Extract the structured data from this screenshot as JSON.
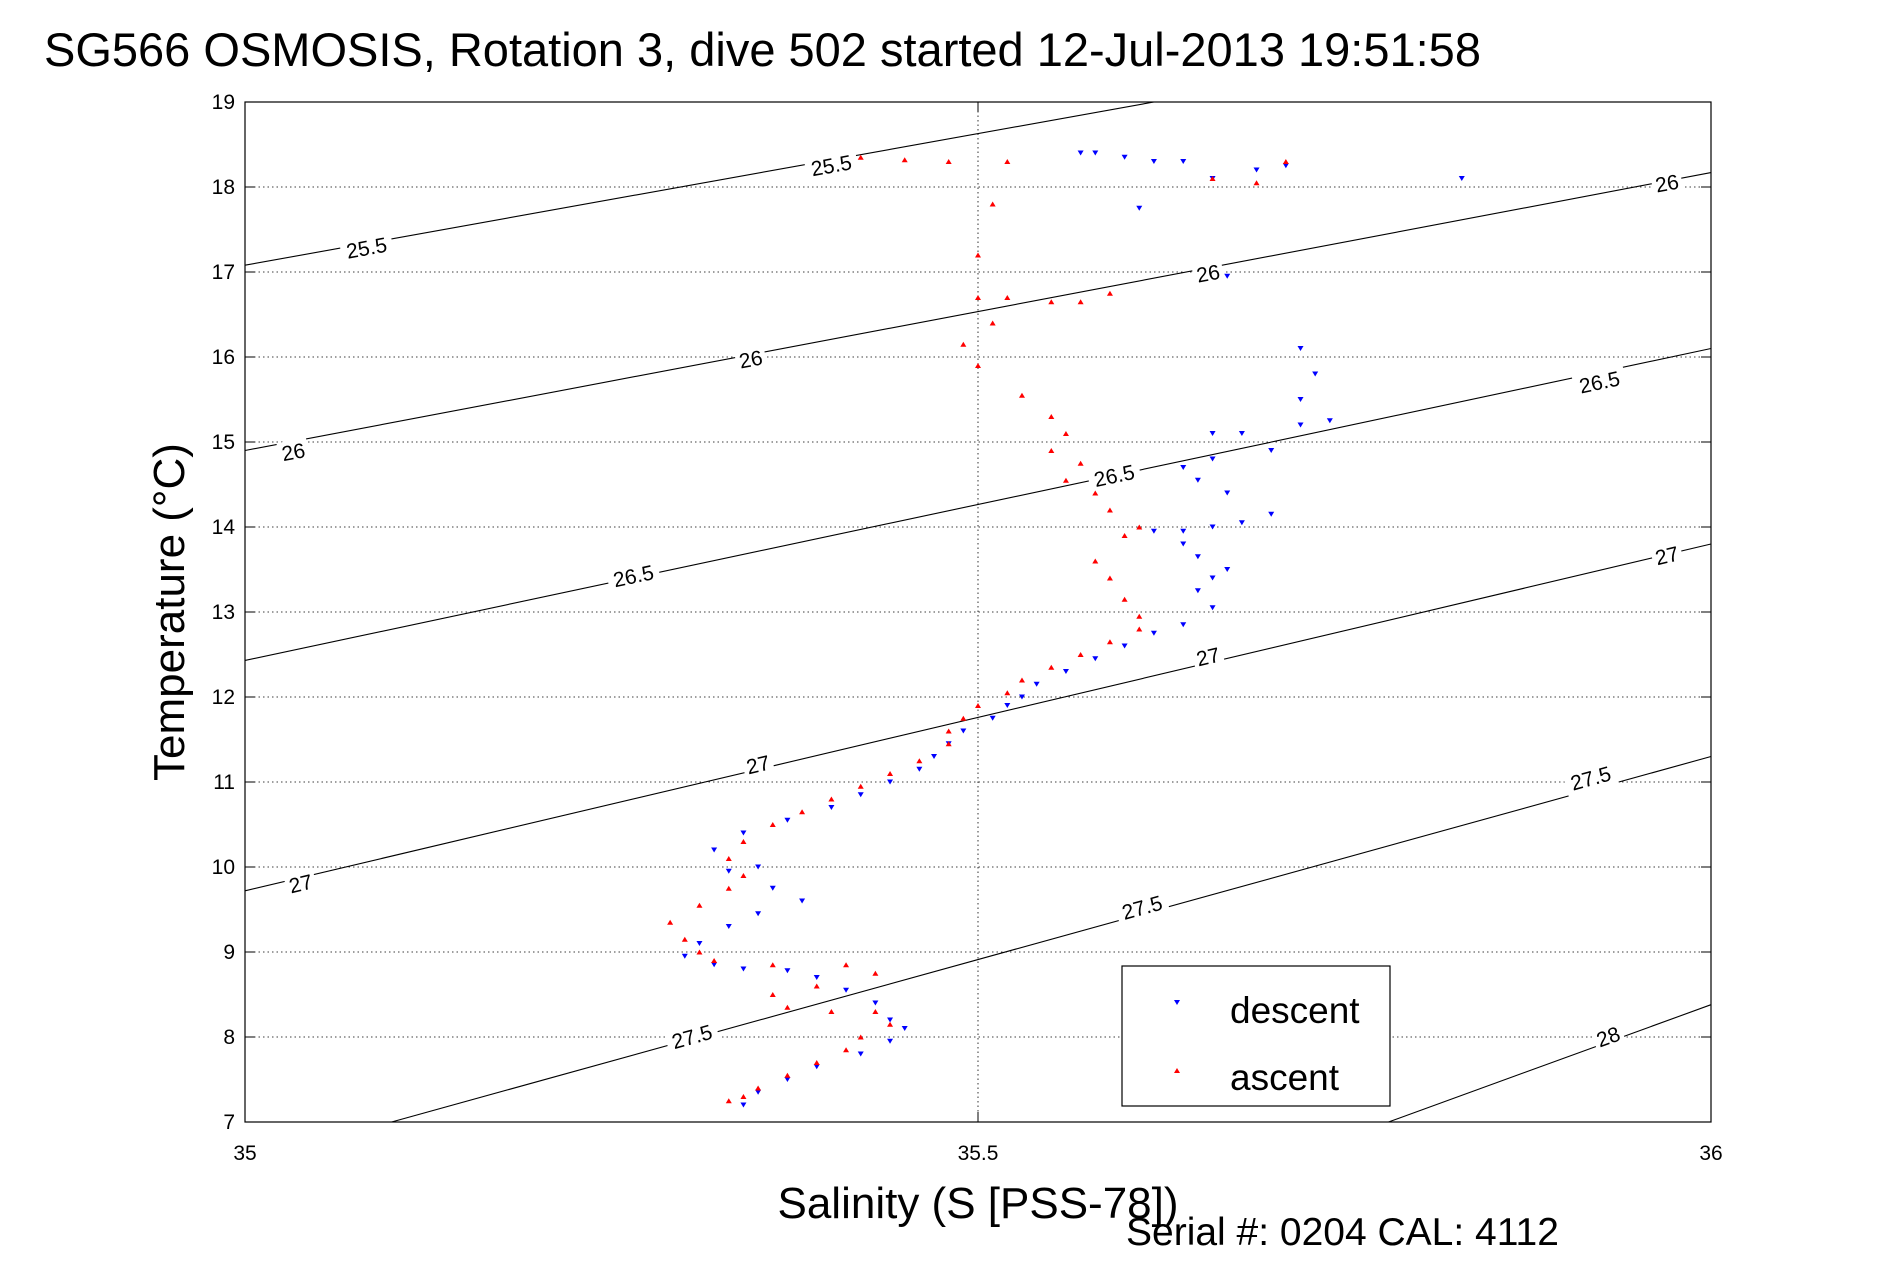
{
  "chart_data": {
    "type": "scatter",
    "title": "SG566 OSMOSIS, Rotation 3, dive 502 started 12-Jul-2013 19:51:58",
    "xlabel": "Salinity (S [PSS-78])",
    "ylabel": "Temperature (°C)",
    "footer": "Serial #: 0204  CAL: 4112",
    "xlim": [
      35,
      36
    ],
    "ylim": [
      7,
      19
    ],
    "xticks": [
      35,
      35.5,
      36
    ],
    "xtick_labels": [
      "35",
      "35.5",
      "36"
    ],
    "yticks": [
      7,
      8,
      9,
      10,
      11,
      12,
      13,
      14,
      15,
      16,
      17,
      18,
      19
    ],
    "ytick_labels": [
      "7",
      "8",
      "9",
      "10",
      "11",
      "12",
      "13",
      "14",
      "15",
      "16",
      "17",
      "18",
      "19"
    ],
    "grid": true,
    "legend_position": "bottom-right",
    "contours": [
      {
        "label": "25.5",
        "points": [
          [
            35.0,
            17.08
          ],
          [
            35.62,
            19.0
          ]
        ],
        "labels_at": [
          [
            35.083,
            17.28
          ],
          [
            35.4,
            18.25
          ]
        ]
      },
      {
        "label": "26",
        "points": [
          [
            35.0,
            14.9
          ],
          [
            36.0,
            18.17
          ]
        ],
        "labels_at": [
          [
            35.033,
            14.88
          ],
          [
            35.345,
            15.97
          ],
          [
            35.657,
            16.98
          ],
          [
            35.97,
            18.04
          ]
        ]
      },
      {
        "label": "26.5",
        "points": [
          [
            35.0,
            12.43
          ],
          [
            36.0,
            16.1
          ]
        ],
        "labels_at": [
          [
            35.265,
            13.42
          ],
          [
            35.593,
            14.6
          ],
          [
            35.924,
            15.7
          ]
        ]
      },
      {
        "label": "27",
        "points": [
          [
            35.0,
            9.72
          ],
          [
            36.0,
            13.8
          ]
        ],
        "labels_at": [
          [
            35.038,
            9.8
          ],
          [
            35.35,
            11.2
          ],
          [
            35.657,
            12.47
          ],
          [
            35.97,
            13.66
          ]
        ]
      },
      {
        "label": "27.5",
        "points": [
          [
            35.1,
            7.0
          ],
          [
            36.0,
            11.3
          ]
        ],
        "labels_at": [
          [
            35.305,
            8.0
          ],
          [
            35.612,
            9.52
          ],
          [
            35.918,
            11.04
          ]
        ]
      },
      {
        "label": "28",
        "points": [
          [
            35.78,
            7.0
          ],
          [
            36.0,
            8.38
          ]
        ],
        "labels_at": [
          [
            35.93,
            8.0
          ]
        ]
      }
    ],
    "series": [
      {
        "name": "descent",
        "color": "#0000ff",
        "marker": "triangle-down",
        "points": [
          [
            35.57,
            18.4
          ],
          [
            35.58,
            18.4
          ],
          [
            35.6,
            18.35
          ],
          [
            35.62,
            18.3
          ],
          [
            35.64,
            18.3
          ],
          [
            35.66,
            18.1
          ],
          [
            35.69,
            18.2
          ],
          [
            35.71,
            18.25
          ],
          [
            35.83,
            18.1
          ],
          [
            35.61,
            17.75
          ],
          [
            35.67,
            16.95
          ],
          [
            35.72,
            16.1
          ],
          [
            35.73,
            15.8
          ],
          [
            35.72,
            15.5
          ],
          [
            35.74,
            15.25
          ],
          [
            35.72,
            15.2
          ],
          [
            35.68,
            15.1
          ],
          [
            35.66,
            15.1
          ],
          [
            35.7,
            14.9
          ],
          [
            35.66,
            14.8
          ],
          [
            35.64,
            14.7
          ],
          [
            35.65,
            14.55
          ],
          [
            35.67,
            14.4
          ],
          [
            35.7,
            14.15
          ],
          [
            35.68,
            14.05
          ],
          [
            35.62,
            13.95
          ],
          [
            35.64,
            13.95
          ],
          [
            35.66,
            14.0
          ],
          [
            35.64,
            13.8
          ],
          [
            35.65,
            13.65
          ],
          [
            35.66,
            13.4
          ],
          [
            35.67,
            13.5
          ],
          [
            35.65,
            13.25
          ],
          [
            35.66,
            13.05
          ],
          [
            35.64,
            12.85
          ],
          [
            35.62,
            12.75
          ],
          [
            35.6,
            12.6
          ],
          [
            35.58,
            12.45
          ],
          [
            35.56,
            12.3
          ],
          [
            35.54,
            12.15
          ],
          [
            35.53,
            12.0
          ],
          [
            35.52,
            11.9
          ],
          [
            35.51,
            11.75
          ],
          [
            35.49,
            11.6
          ],
          [
            35.48,
            11.45
          ],
          [
            35.47,
            11.3
          ],
          [
            35.46,
            11.15
          ],
          [
            35.44,
            11.0
          ],
          [
            35.42,
            10.85
          ],
          [
            35.4,
            10.7
          ],
          [
            35.37,
            10.55
          ],
          [
            35.34,
            10.4
          ],
          [
            35.32,
            10.2
          ],
          [
            35.35,
            10.0
          ],
          [
            35.33,
            9.95
          ],
          [
            35.36,
            9.75
          ],
          [
            35.38,
            9.6
          ],
          [
            35.35,
            9.45
          ],
          [
            35.33,
            9.3
          ],
          [
            35.31,
            9.1
          ],
          [
            35.3,
            8.95
          ],
          [
            35.32,
            8.85
          ],
          [
            35.34,
            8.8
          ],
          [
            35.37,
            8.78
          ],
          [
            35.39,
            8.7
          ],
          [
            35.41,
            8.55
          ],
          [
            35.43,
            8.4
          ],
          [
            35.44,
            8.2
          ],
          [
            35.45,
            8.1
          ],
          [
            35.44,
            7.95
          ],
          [
            35.42,
            7.8
          ],
          [
            35.39,
            7.65
          ],
          [
            35.37,
            7.5
          ],
          [
            35.35,
            7.35
          ],
          [
            35.34,
            7.2
          ]
        ]
      },
      {
        "name": "ascent",
        "color": "#ff0000",
        "marker": "triangle-up",
        "points": [
          [
            35.42,
            18.35
          ],
          [
            35.45,
            18.32
          ],
          [
            35.48,
            18.3
          ],
          [
            35.52,
            18.3
          ],
          [
            35.66,
            18.1
          ],
          [
            35.69,
            18.05
          ],
          [
            35.71,
            18.3
          ],
          [
            35.51,
            17.8
          ],
          [
            35.5,
            17.2
          ],
          [
            35.5,
            16.7
          ],
          [
            35.52,
            16.7
          ],
          [
            35.55,
            16.65
          ],
          [
            35.57,
            16.65
          ],
          [
            35.59,
            16.75
          ],
          [
            35.51,
            16.4
          ],
          [
            35.49,
            16.15
          ],
          [
            35.5,
            15.9
          ],
          [
            35.53,
            15.55
          ],
          [
            35.55,
            15.3
          ],
          [
            35.56,
            15.1
          ],
          [
            35.55,
            14.9
          ],
          [
            35.57,
            14.75
          ],
          [
            35.56,
            14.55
          ],
          [
            35.58,
            14.4
          ],
          [
            35.59,
            14.2
          ],
          [
            35.61,
            14.0
          ],
          [
            35.6,
            13.9
          ],
          [
            35.58,
            13.6
          ],
          [
            35.59,
            13.4
          ],
          [
            35.6,
            13.15
          ],
          [
            35.61,
            12.95
          ],
          [
            35.61,
            12.8
          ],
          [
            35.59,
            12.65
          ],
          [
            35.57,
            12.5
          ],
          [
            35.55,
            12.35
          ],
          [
            35.53,
            12.2
          ],
          [
            35.52,
            12.05
          ],
          [
            35.5,
            11.9
          ],
          [
            35.49,
            11.75
          ],
          [
            35.48,
            11.6
          ],
          [
            35.48,
            11.45
          ],
          [
            35.46,
            11.25
          ],
          [
            35.44,
            11.1
          ],
          [
            35.42,
            10.95
          ],
          [
            35.4,
            10.8
          ],
          [
            35.38,
            10.65
          ],
          [
            35.36,
            10.5
          ],
          [
            35.34,
            10.3
          ],
          [
            35.33,
            10.1
          ],
          [
            35.34,
            9.9
          ],
          [
            35.33,
            9.75
          ],
          [
            35.31,
            9.55
          ],
          [
            35.29,
            9.35
          ],
          [
            35.3,
            9.15
          ],
          [
            35.31,
            9.0
          ],
          [
            35.32,
            8.9
          ],
          [
            35.36,
            8.85
          ],
          [
            35.41,
            8.85
          ],
          [
            35.43,
            8.75
          ],
          [
            35.39,
            8.6
          ],
          [
            35.36,
            8.5
          ],
          [
            35.37,
            8.35
          ],
          [
            35.4,
            8.3
          ],
          [
            35.43,
            8.3
          ],
          [
            35.44,
            8.15
          ],
          [
            35.42,
            8.0
          ],
          [
            35.41,
            7.85
          ],
          [
            35.39,
            7.7
          ],
          [
            35.37,
            7.55
          ],
          [
            35.35,
            7.4
          ],
          [
            35.34,
            7.3
          ],
          [
            35.33,
            7.25
          ]
        ]
      }
    ]
  }
}
